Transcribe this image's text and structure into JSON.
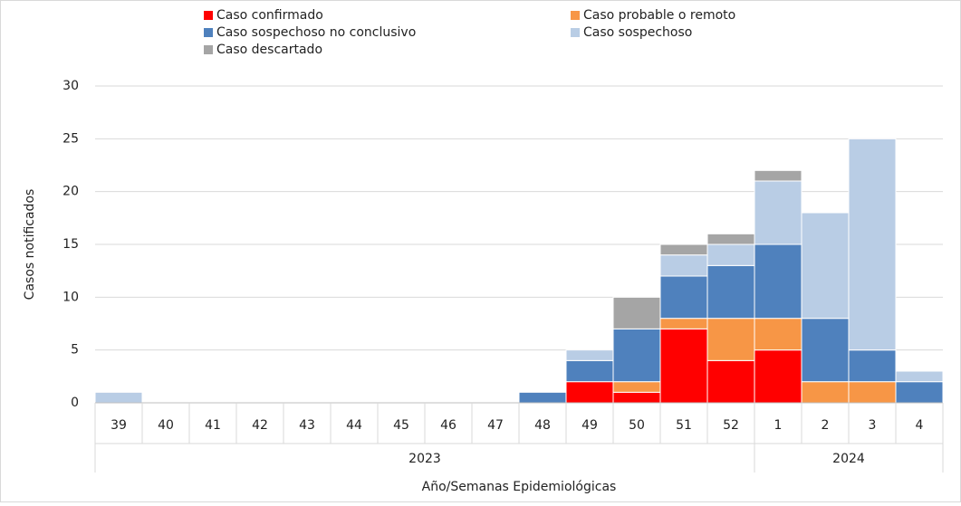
{
  "chart_data": {
    "type": "stacked_bar",
    "x_label": "Año/Semanas Epidemiológicas",
    "y_label": "Casos notificados",
    "categories": [
      "39",
      "40",
      "41",
      "42",
      "43",
      "44",
      "45",
      "46",
      "47",
      "48",
      "49",
      "50",
      "51",
      "52",
      "1",
      "2",
      "3",
      "4"
    ],
    "category_groups": [
      "2023",
      "2023",
      "2023",
      "2023",
      "2023",
      "2023",
      "2023",
      "2023",
      "2023",
      "2023",
      "2023",
      "2023",
      "2023",
      "2023",
      "2024",
      "2024",
      "2024",
      "2024"
    ],
    "series": [
      {
        "name": "Caso confirmado",
        "color": "#ff0000",
        "values": [
          0,
          0,
          0,
          0,
          0,
          0,
          0,
          0,
          0,
          0,
          2,
          1,
          7,
          4,
          5,
          0,
          0,
          0
        ]
      },
      {
        "name": "Caso probable o remoto",
        "color": "#f79646",
        "values": [
          0,
          0,
          0,
          0,
          0,
          0,
          0,
          0,
          0,
          0,
          0,
          1,
          1,
          4,
          3,
          2,
          2,
          0
        ]
      },
      {
        "name": "Caso sospechoso no conclusivo",
        "color": "#4f81bd",
        "values": [
          0,
          0,
          0,
          0,
          0,
          0,
          0,
          0,
          0,
          1,
          2,
          5,
          4,
          5,
          7,
          6,
          3,
          2
        ]
      },
      {
        "name": "Caso sospechoso",
        "color": "#b9cde5",
        "values": [
          1,
          0,
          0,
          0,
          0,
          0,
          0,
          0,
          0,
          0,
          1,
          0,
          2,
          2,
          6,
          10,
          20,
          1
        ]
      },
      {
        "name": "Caso descartado",
        "color": "#a5a5a5",
        "values": [
          0,
          0,
          0,
          0,
          0,
          0,
          0,
          0,
          0,
          0,
          0,
          3,
          1,
          1,
          1,
          0,
          0,
          0
        ]
      }
    ],
    "ylim": [
      0,
      30
    ],
    "yticks": [
      0,
      5,
      10,
      15,
      20,
      25,
      30
    ],
    "grid": true,
    "legend": "top"
  }
}
